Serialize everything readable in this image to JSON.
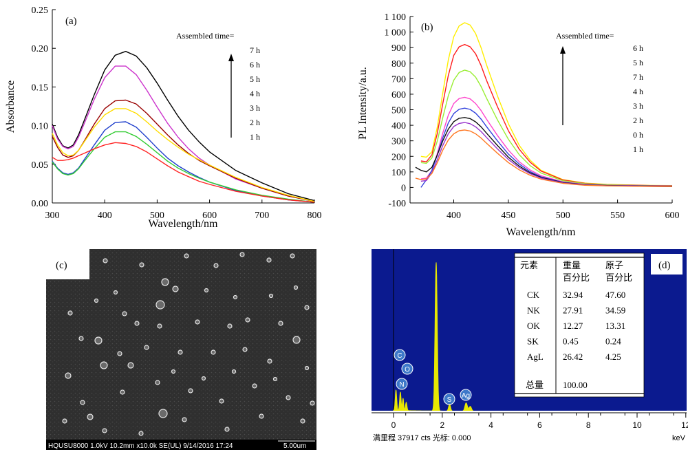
{
  "chart_data": [
    {
      "type": "line",
      "panel_label": "(a)",
      "xlabel": "Wavelength/nm",
      "ylabel": "Absorbance",
      "xlim": [
        300,
        800
      ],
      "ylim": [
        0,
        0.25
      ],
      "x_ticks": [
        "300",
        "400",
        "500",
        "600",
        "700",
        "800"
      ],
      "y_ticks": [
        "0.00",
        "0.05",
        "0.10",
        "0.15",
        "0.20",
        "0.25"
      ],
      "legend_title": "Assembled time=",
      "legend_entries": [
        "7 h",
        "6 h",
        "5 h",
        "4 h",
        "3 h",
        "2 h",
        "1 h"
      ],
      "grid": false,
      "x": [
        300,
        310,
        320,
        330,
        340,
        350,
        360,
        380,
        400,
        420,
        440,
        460,
        480,
        500,
        520,
        540,
        560,
        580,
        600,
        650,
        700,
        750,
        800
      ],
      "series": [
        {
          "name": "7 h",
          "color": "#000000",
          "values": [
            0.102,
            0.085,
            0.074,
            0.071,
            0.075,
            0.088,
            0.105,
            0.14,
            0.172,
            0.191,
            0.196,
            0.19,
            0.175,
            0.155,
            0.133,
            0.112,
            0.094,
            0.079,
            0.066,
            0.042,
            0.026,
            0.012,
            0.003
          ]
        },
        {
          "name": "6 h",
          "color": "#cc33cc",
          "values": [
            0.1,
            0.083,
            0.073,
            0.07,
            0.073,
            0.085,
            0.101,
            0.134,
            0.162,
            0.177,
            0.177,
            0.166,
            0.146,
            0.124,
            0.103,
            0.085,
            0.07,
            0.058,
            0.049,
            0.031,
            0.019,
            0.009,
            0.002
          ]
        },
        {
          "name": "5 h",
          "color": "#990000",
          "values": [
            0.086,
            0.072,
            0.062,
            0.059,
            0.061,
            0.068,
            0.079,
            0.102,
            0.122,
            0.132,
            0.133,
            0.128,
            0.116,
            0.102,
            0.088,
            0.075,
            0.064,
            0.055,
            0.048,
            0.032,
            0.019,
            0.009,
            0.002
          ]
        },
        {
          "name": "4 h",
          "color": "#ffdd00",
          "values": [
            0.09,
            0.075,
            0.065,
            0.061,
            0.062,
            0.068,
            0.078,
            0.098,
            0.114,
            0.122,
            0.122,
            0.116,
            0.105,
            0.093,
            0.082,
            0.072,
            0.063,
            0.056,
            0.049,
            0.033,
            0.02,
            0.01,
            0.002
          ]
        },
        {
          "name": "3 h",
          "color": "#1f3fcc",
          "values": [
            0.054,
            0.045,
            0.039,
            0.037,
            0.039,
            0.045,
            0.055,
            0.075,
            0.094,
            0.104,
            0.105,
            0.098,
            0.085,
            0.071,
            0.058,
            0.048,
            0.04,
            0.033,
            0.027,
            0.016,
            0.009,
            0.004,
            0.001
          ]
        },
        {
          "name": "2 h",
          "color": "#33cc33",
          "values": [
            0.053,
            0.044,
            0.038,
            0.036,
            0.038,
            0.044,
            0.053,
            0.07,
            0.085,
            0.092,
            0.092,
            0.086,
            0.076,
            0.065,
            0.054,
            0.045,
            0.038,
            0.032,
            0.027,
            0.017,
            0.01,
            0.005,
            0.001
          ]
        },
        {
          "name": "1 h",
          "color": "#ff2222",
          "values": [
            0.059,
            0.055,
            0.055,
            0.056,
            0.058,
            0.061,
            0.064,
            0.07,
            0.075,
            0.078,
            0.077,
            0.073,
            0.066,
            0.057,
            0.048,
            0.04,
            0.034,
            0.028,
            0.024,
            0.015,
            0.009,
            0.004,
            0.001
          ]
        }
      ]
    },
    {
      "type": "line",
      "panel_label": "(b)",
      "xlabel": "Wavelength/nm",
      "ylabel": "PL Intensity/a.u.",
      "xlim": [
        360,
        600
      ],
      "ylim": [
        -100,
        1100
      ],
      "x_ticks": [
        "400",
        "450",
        "500",
        "550",
        "600"
      ],
      "y_ticks": [
        "-100",
        "0",
        "100",
        "200",
        "300",
        "400",
        "500",
        "600",
        "700",
        "800",
        "900",
        "1 000",
        "1 100"
      ],
      "legend_title": "Assembled time=",
      "legend_entries": [
        "6 h",
        "5 h",
        "7 h",
        "4 h",
        "3 h",
        "2 h",
        "0 h",
        "1 h"
      ],
      "grid": false,
      "x": [
        365,
        370,
        375,
        380,
        385,
        390,
        395,
        400,
        405,
        410,
        415,
        420,
        425,
        430,
        440,
        450,
        460,
        470,
        480,
        500,
        520,
        540,
        560,
        580,
        600
      ],
      "series": [
        {
          "name": "6 h",
          "color": "#ffee00",
          "values": [
            null,
            200,
            195,
            230,
            390,
            610,
            820,
            970,
            1040,
            1060,
            1045,
            990,
            900,
            790,
            590,
            410,
            270,
            175,
            110,
            50,
            28,
            20,
            16,
            13,
            12
          ]
        },
        {
          "name": "5 h",
          "color": "#ff1a1a",
          "values": [
            null,
            170,
            165,
            210,
            350,
            540,
            720,
            850,
            905,
            920,
            905,
            860,
            785,
            690,
            520,
            365,
            245,
            162,
            105,
            48,
            26,
            18,
            15,
            12,
            11
          ]
        },
        {
          "name": "7 h",
          "color": "#99ee33",
          "values": [
            null,
            160,
            155,
            190,
            300,
            450,
            590,
            690,
            740,
            755,
            745,
            710,
            650,
            575,
            435,
            310,
            210,
            140,
            92,
            43,
            24,
            17,
            14,
            11,
            10
          ]
        },
        {
          "name": "4 h",
          "color": "#ff44cc",
          "values": [
            null,
            55,
            60,
            110,
            220,
            350,
            465,
            540,
            572,
            580,
            570,
            540,
            495,
            440,
            335,
            240,
            165,
            112,
            75,
            36,
            20,
            14,
            12,
            10,
            9
          ]
        },
        {
          "name": "3 h",
          "color": "#3344dd",
          "values": [
            null,
            0,
            50,
            110,
            210,
            320,
            415,
            475,
            503,
            510,
            502,
            478,
            440,
            392,
            300,
            215,
            150,
            102,
            68,
            33,
            18,
            13,
            11,
            9,
            8
          ]
        },
        {
          "name": "2 h",
          "color": "#111111",
          "values": [
            130,
            110,
            100,
            130,
            210,
            300,
            375,
            423,
            445,
            450,
            443,
            422,
            390,
            350,
            270,
            195,
            137,
            94,
            64,
            31,
            17,
            12,
            10,
            8,
            7
          ]
        },
        {
          "name": "0 h",
          "color": "#9933cc",
          "values": [
            null,
            40,
            45,
            95,
            180,
            270,
            345,
            392,
            412,
            418,
            410,
            390,
            360,
            322,
            248,
            180,
            127,
            88,
            60,
            29,
            16,
            11,
            9,
            7,
            6
          ]
        },
        {
          "name": "1 h",
          "color": "#ff7722",
          "values": [
            60,
            50,
            55,
            90,
            160,
            240,
            305,
            345,
            365,
            370,
            363,
            345,
            318,
            285,
            220,
            160,
            113,
            78,
            53,
            26,
            14,
            10,
            8,
            6,
            5
          ]
        }
      ]
    }
  ],
  "sem": {
    "panel_label": "(c)",
    "info": [
      "HQUSU8000",
      "1.0kV",
      "10.2mm",
      "x10.0k",
      "SE(UL)",
      "9/14/2016",
      "17:24"
    ],
    "scale_text": "5.00um"
  },
  "eds": {
    "panel_label": "(d)",
    "table_headers": [
      "元素",
      "重量\n百分比",
      "原子\n百分比"
    ],
    "rows": [
      {
        "element": "CK",
        "weight": "32.94",
        "atomic": "47.60"
      },
      {
        "element": "NK",
        "weight": "27.91",
        "atomic": "34.59"
      },
      {
        "element": "OK",
        "weight": "12.27",
        "atomic": "13.31"
      },
      {
        "element": "SK",
        "weight": "0.45",
        "atomic": "0.24"
      },
      {
        "element": "AgL",
        "weight": "26.42",
        "atomic": "4.25"
      }
    ],
    "total_label": "总量",
    "total_weight": "100.00",
    "x_ticks": [
      "0",
      "2",
      "4",
      "6",
      "8",
      "10",
      "12"
    ],
    "unit": "keV",
    "status": "满里程 37917 cts 光标: 0.000",
    "peak_labels": [
      "C",
      "O",
      "N",
      "S",
      "Ag"
    ],
    "colors": {
      "background": "#0b1a8f",
      "spectrum": "#e8e800",
      "marker": "#3d78c9"
    }
  }
}
